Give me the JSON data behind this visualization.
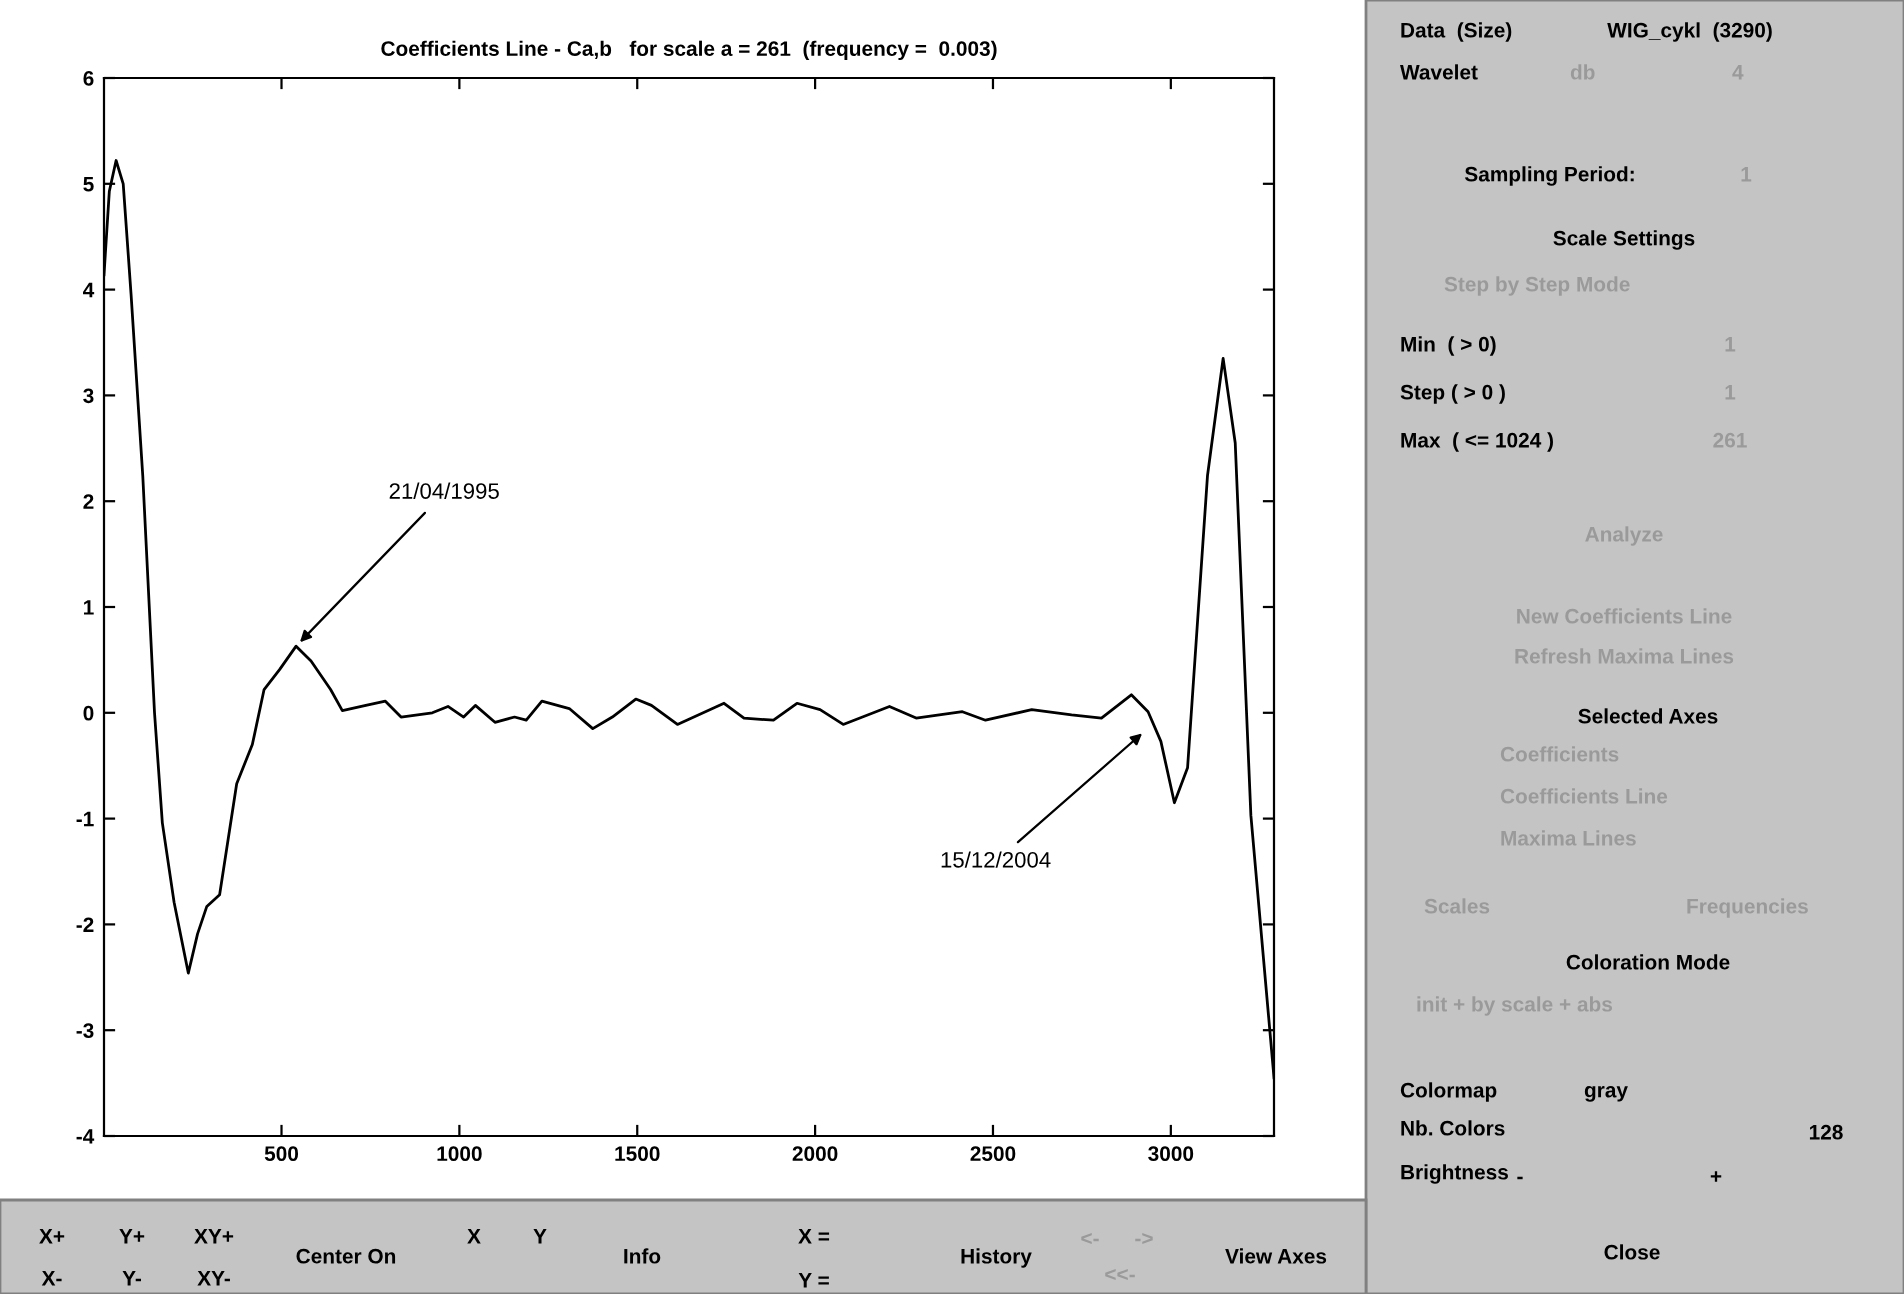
{
  "chart_data": [
    {
      "type": "line",
      "title": "Coefficients Line - Ca,b   for scale a = 261  (frequency =  0.003)",
      "x": [
        1,
        16,
        35,
        55,
        77,
        110,
        143,
        165,
        198,
        238,
        264,
        290,
        326,
        374,
        418,
        451,
        495,
        541,
        583,
        638,
        671,
        737,
        792,
        836,
        924,
        968,
        1012,
        1045,
        1100,
        1155,
        1188,
        1232,
        1309,
        1375,
        1430,
        1496,
        1540,
        1613,
        1744,
        1800,
        1883,
        1949,
        2014,
        2079,
        2209,
        2284,
        2414,
        2479,
        2609,
        2721,
        2805,
        2889,
        2936,
        2972,
        3010,
        3047,
        3103,
        3147,
        3181,
        3225,
        3290
      ],
      "series": [
        {
          "color": "#000000",
          "values": [
            4.14,
            4.93,
            5.22,
            5.0,
            3.96,
            2.24,
            0.0,
            -1.04,
            -1.79,
            -2.46,
            -2.09,
            -1.83,
            -1.72,
            -0.67,
            -0.3,
            0.22,
            0.41,
            0.63,
            0.49,
            0.22,
            0.02,
            0.07,
            0.11,
            -0.04,
            0.0,
            0.06,
            -0.04,
            0.07,
            -0.09,
            -0.04,
            -0.07,
            0.11,
            0.04,
            -0.15,
            -0.04,
            0.13,
            0.07,
            -0.11,
            0.09,
            -0.05,
            -0.07,
            0.09,
            0.03,
            -0.11,
            0.06,
            -0.05,
            0.01,
            -0.07,
            0.03,
            -0.02,
            -0.05,
            0.17,
            0.01,
            -0.27,
            -0.85,
            -0.52,
            2.24,
            3.35,
            2.55,
            -0.97,
            -3.45
          ]
        }
      ],
      "xlim": [
        1,
        3290
      ],
      "ylim": [
        -4,
        6
      ],
      "xticks": [
        500,
        1000,
        1500,
        2000,
        2500,
        3000
      ],
      "yticks": [
        -4,
        -3,
        -2,
        -1,
        0,
        1,
        2,
        3,
        4,
        5,
        6
      ],
      "grid": false,
      "legend": false,
      "marker": "none",
      "line_style": "solid",
      "annotations": [
        {
          "text": "21/04/1995",
          "x": 541,
          "y": 0.63
        },
        {
          "text": "15/12/2004",
          "x": 2931,
          "y": -0.16
        }
      ]
    },
    {
      "type": "other",
      "annotations": [
        "Data  (Size)",
        "WIG_cykl  (3290)",
        "Wavelet",
        "db",
        "4",
        "Sampling Period:",
        "1",
        "Scale Settings",
        "Step by Step Mode",
        "Min  ( > 0)",
        "1",
        "Step ( > 0 )",
        "1",
        "Max  ( <= 1024 )",
        "261",
        "Analyze",
        "New Coefficients Line",
        "Refresh Maxima Lines",
        "Selected Axes",
        "Coefficients",
        "Coefficients Line",
        "Maxima Lines",
        "Scales",
        "Frequencies",
        "Coloration Mode",
        "init + by scale + abs",
        "Colormap",
        "gray",
        "Nb. Colors",
        "128",
        "Brightness",
        "-",
        "+",
        "Close",
        "X+",
        "Y+",
        "XY+",
        "X-",
        "Y-",
        "XY-",
        "Center On",
        "X",
        "Y",
        "Info",
        "X =",
        "Y =",
        "History",
        "<-",
        "->",
        "<<-",
        "View Axes"
      ]
    }
  ]
}
